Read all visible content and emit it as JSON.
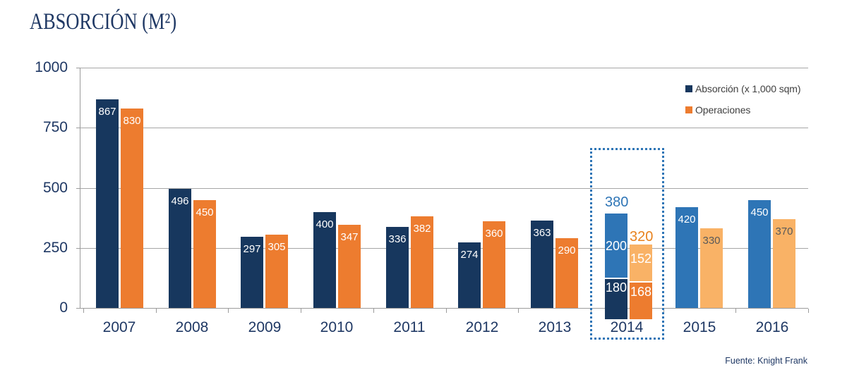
{
  "title": "ABSORCIÓN (M²)",
  "source": "Fuente: Knight Frank",
  "colors": {
    "navy": "#17375E",
    "orange": "#ED7C2F",
    "blue_medium": "#2E75B6",
    "orange_light": "#F9B266",
    "text_navy": "#1F3864",
    "grid_gray": "#A6A6A6",
    "legend_text": "#404040",
    "value_dark": "#595959",
    "highlight_border": "#2E75B6"
  },
  "legend": {
    "items": [
      {
        "label": "Absorción (x 1,000 sqm)",
        "color_key": "navy"
      },
      {
        "label": "Operaciones",
        "color_key": "orange"
      }
    ]
  },
  "chart_data": {
    "type": "bar",
    "title": "ABSORCIÓN (M²)",
    "xlabel": "",
    "ylabel": "",
    "ylim": [
      0,
      1000
    ],
    "yticks": [
      0,
      250,
      500,
      750,
      1000
    ],
    "grid": true,
    "legend_position": "top-right",
    "categories": [
      "2007",
      "2008",
      "2009",
      "2010",
      "2011",
      "2012",
      "2013",
      "2014",
      "2015",
      "2016"
    ],
    "series": [
      {
        "name": "Absorción (x 1,000 sqm)",
        "values": [
          867,
          496,
          297,
          400,
          336,
          274,
          363,
          380,
          420,
          450
        ]
      },
      {
        "name": "Operaciones",
        "values": [
          830,
          450,
          305,
          347,
          382,
          360,
          290,
          320,
          330,
          370
        ]
      }
    ],
    "forecast_years": [
      "2015",
      "2016"
    ],
    "highlighted_year": "2014",
    "stacked_breakdown_2014": {
      "absorcion": {
        "total": 380,
        "bottom_segment": 180,
        "top_segment": 200
      },
      "operaciones": {
        "total": 320,
        "bottom_segment": 168,
        "top_segment": 152
      }
    },
    "source": "Fuente: Knight Frank"
  }
}
